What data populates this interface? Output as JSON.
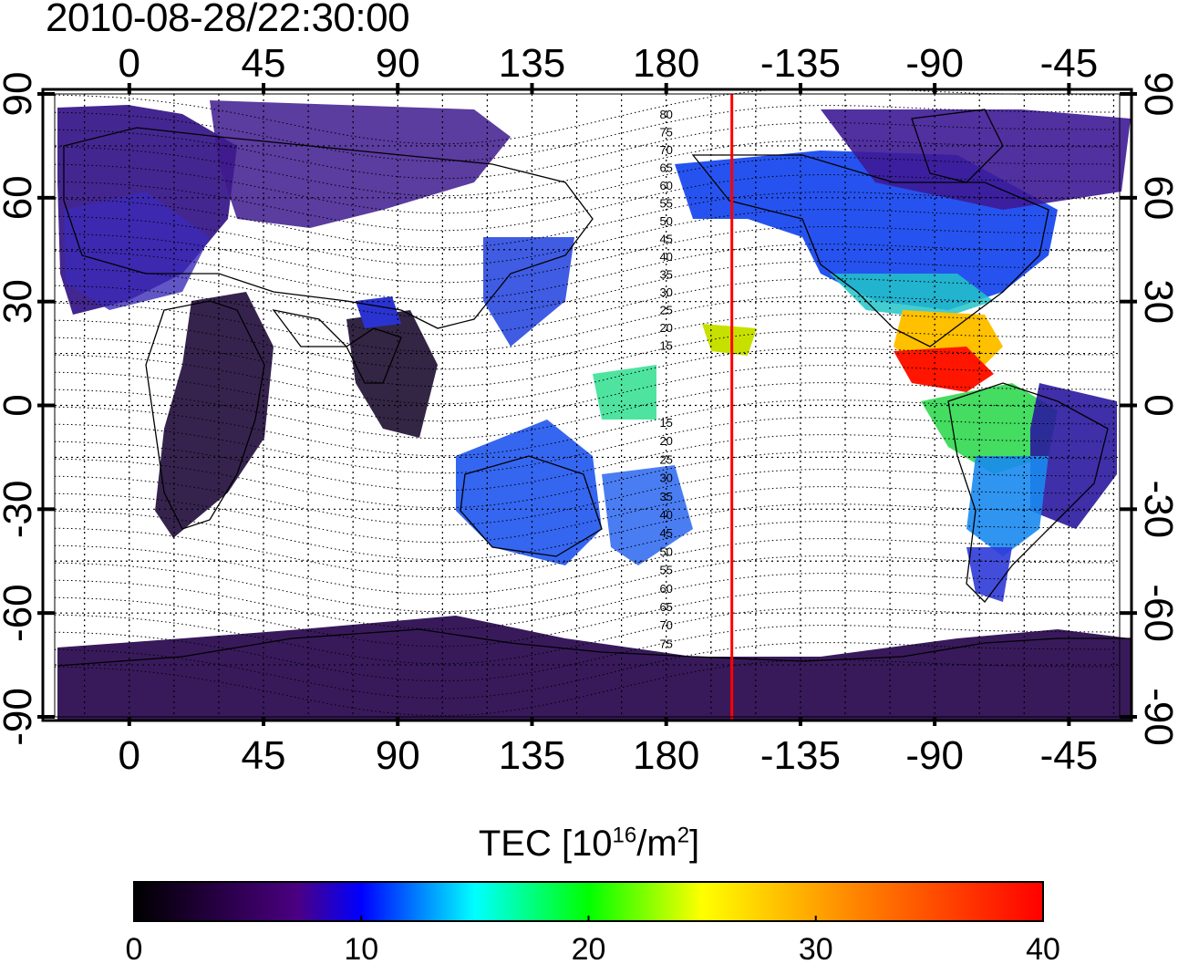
{
  "title": "2010-08-28/22:30:00",
  "map": {
    "top_lon_labels": [
      "0",
      "45",
      "90",
      "135",
      "180",
      "-135",
      "-90",
      "-45"
    ],
    "bottom_lon_labels": [
      "0",
      "45",
      "90",
      "135",
      "180",
      "-135",
      "-90",
      "-45"
    ],
    "left_lat_labels": [
      "90",
      "60",
      "30",
      "0",
      "-30",
      "-60",
      "-90"
    ],
    "right_lat_labels": [
      "90",
      "60",
      "30",
      "0",
      "-30",
      "-60",
      "-90"
    ],
    "lon_ticks_deg": [
      0,
      45,
      90,
      135,
      180,
      225,
      270,
      315
    ],
    "lat_ticks_deg": [
      90,
      60,
      30,
      0,
      -30,
      -60,
      -90
    ],
    "lon_range": [
      -25,
      332
    ],
    "lat_range": [
      -90,
      90
    ],
    "marker_line_lon_deg": 202,
    "marker_line_color": "#ff0000",
    "contour_labels_north": [
      "80",
      "75",
      "70",
      "65",
      "60",
      "55",
      "50",
      "45",
      "40",
      "35",
      "30",
      "25",
      "20",
      "15"
    ],
    "contour_labels_south": [
      "15",
      "20",
      "25",
      "30",
      "35",
      "40",
      "45",
      "50",
      "55",
      "60",
      "65",
      "70",
      "75"
    ]
  },
  "colorbar": {
    "label_main": "TEC  [10",
    "label_exp1": "16",
    "label_mid": "/m",
    "label_exp2": "2",
    "label_end": "]",
    "tick_labels": [
      "0",
      "10",
      "20",
      "30",
      "40"
    ],
    "range": [
      0,
      40
    ],
    "stops": [
      "#000000",
      "#4b0082",
      "#0000ff",
      "#00ffff",
      "#00ff00",
      "#ffff00",
      "#ff8000",
      "#ff0000"
    ]
  }
}
